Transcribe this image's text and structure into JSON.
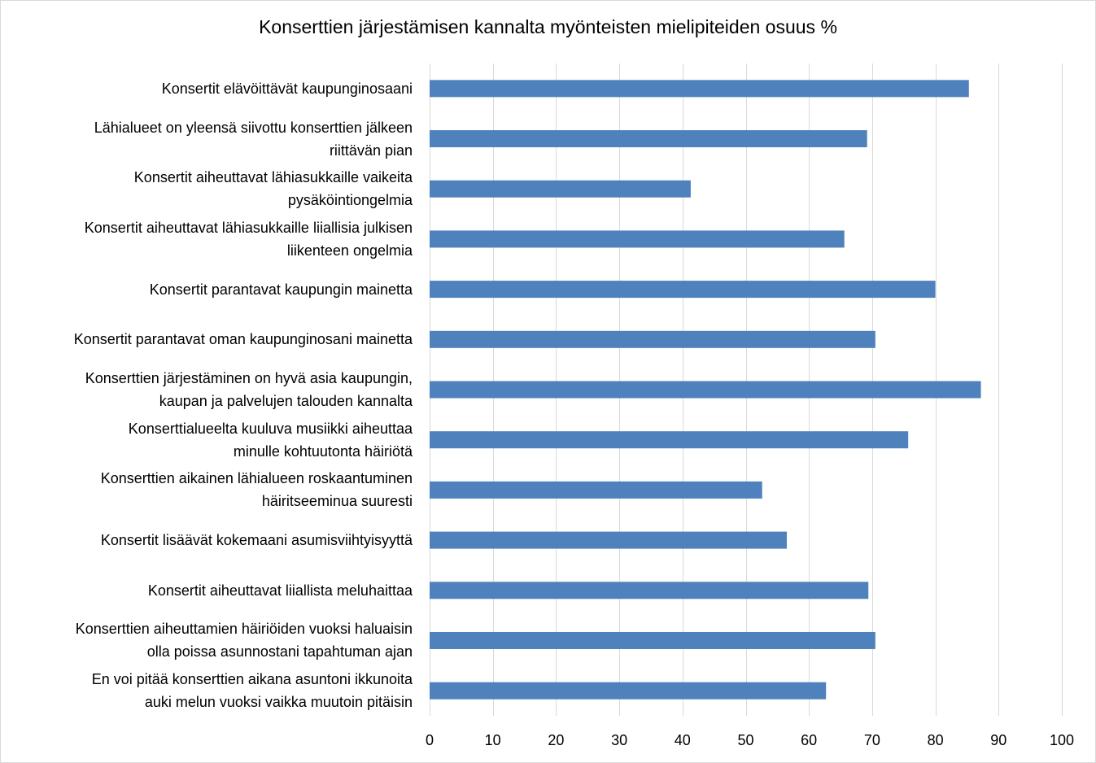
{
  "chart_data": {
    "type": "bar",
    "orientation": "horizontal",
    "title": "Konserttien järjestämisen kannalta myönteisten mielipiteiden osuus %",
    "categories": [
      [
        "Konsertit elävöittävät kaupunginosaani"
      ],
      [
        "Lähialueet on yleensä siivottu konserttien jälkeen",
        "riittävän pian"
      ],
      [
        "Konsertit aiheuttavat lähiasukkaille vaikeita",
        "pysäköintiongelmia"
      ],
      [
        "Konsertit aiheuttavat lähiasukkaille liiallisia julkisen",
        "liikenteen ongelmia"
      ],
      [
        "Konsertit parantavat kaupungin mainetta"
      ],
      [
        "Konsertit parantavat oman kaupunginosani mainetta"
      ],
      [
        "Konserttien järjestäminen on hyvä asia kaupungin,",
        "kaupan ja palvelujen talouden kannalta"
      ],
      [
        "Konserttialueelta kuuluva musiikki aiheuttaa",
        "minulle kohtuutonta häiriötä"
      ],
      [
        "Konserttien aikainen lähialueen roskaantuminen",
        "häiritseeminua suuresti"
      ],
      [
        "Konsertit lisäävät kokemaani asumisviihtyisyyttä"
      ],
      [
        "Konsertit aiheuttavat liiallista meluhaittaa"
      ],
      [
        "Konserttien aiheuttamien häiriöiden vuoksi haluaisin",
        "olla poissa asunnostani tapahtuman ajan"
      ],
      [
        "En voi pitää konserttien aikana asuntoni ikkunoita",
        "auki melun vuoksi vaikka muutoin pitäisin"
      ]
    ],
    "values": [
      85.3,
      69.2,
      41.3,
      65.6,
      80.0,
      70.5,
      87.2,
      75.7,
      52.6,
      56.5,
      69.4,
      70.5,
      62.7
    ],
    "xlim": [
      0,
      100
    ],
    "xticks": [
      "0",
      "10",
      "20",
      "30",
      "40",
      "50",
      "60",
      "70",
      "80",
      "90",
      "100"
    ],
    "grid": true,
    "legend": "none",
    "bar_color": "#4f81bd",
    "grid_color": "#d9d9d9"
  }
}
